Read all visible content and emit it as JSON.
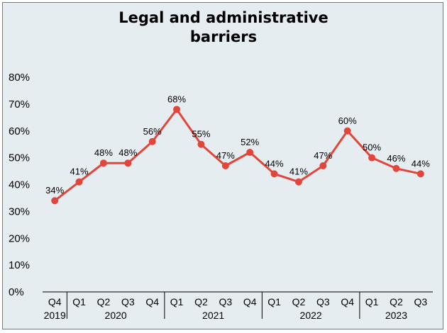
{
  "colors": {
    "background": "#e6edf1",
    "line": "#e2453a",
    "axis": "#000000"
  },
  "chart_data": {
    "type": "line",
    "title_line1": "Legal and administrative",
    "title_line2": "barriers",
    "xlabel": "",
    "ylabel": "",
    "ylim": [
      0,
      80
    ],
    "y_ticks": [
      "0%",
      "10%",
      "20%",
      "30%",
      "40%",
      "50%",
      "60%",
      "70%",
      "80%"
    ],
    "grid": false,
    "legend": "none",
    "categories": [
      "Q4",
      "Q1",
      "Q2",
      "Q3",
      "Q4",
      "Q1",
      "Q2",
      "Q3",
      "Q4",
      "Q1",
      "Q2",
      "Q3",
      "Q4",
      "Q1",
      "Q2",
      "Q3"
    ],
    "year_labels": [
      "2019",
      "2020",
      "2021",
      "2022",
      "2023"
    ],
    "values": [
      34,
      41,
      48,
      48,
      56,
      68,
      55,
      47,
      52,
      44,
      41,
      47,
      60,
      50,
      46,
      44
    ],
    "data_labels": [
      "34%",
      "41%",
      "48%",
      "48%",
      "56%",
      "68%",
      "55%",
      "47%",
      "52%",
      "44%",
      "41%",
      "47%",
      "60%",
      "50%",
      "46%",
      "44%"
    ]
  }
}
